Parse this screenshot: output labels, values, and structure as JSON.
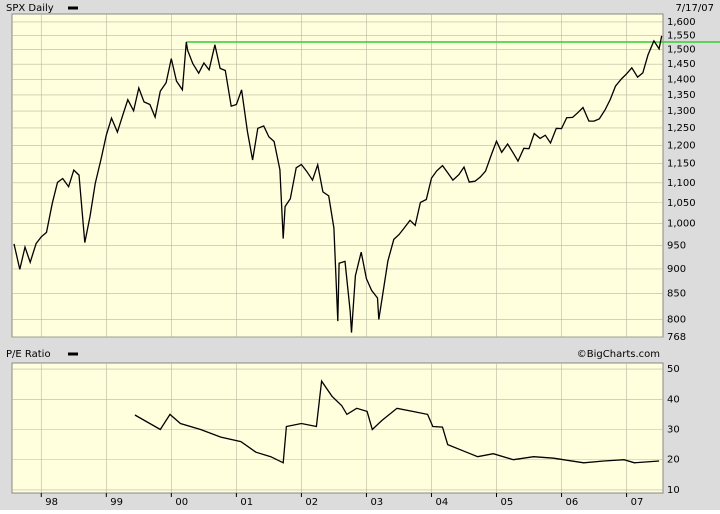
{
  "chart_data": [
    {
      "type": "line",
      "date_label": "7/17/07",
      "log_scale": true,
      "grid": true,
      "xlim": [
        1997.55,
        2007.56
      ],
      "ylim": [
        768,
        1630
      ],
      "yticks": [
        768,
        800,
        850,
        900,
        950,
        {
          "value": 1000,
          "label": "1,000"
        },
        {
          "value": 1050,
          "label": "1,050"
        },
        {
          "value": 1100,
          "label": "1,100"
        },
        {
          "value": 1150,
          "label": "1,150"
        },
        {
          "value": 1200,
          "label": "1,200"
        },
        {
          "value": 1250,
          "label": "1,250"
        },
        {
          "value": 1300,
          "label": "1,300"
        },
        {
          "value": 1350,
          "label": "1,350"
        },
        {
          "value": 1400,
          "label": "1,400"
        },
        {
          "value": 1450,
          "label": "1,450"
        },
        {
          "value": 1500,
          "label": "1,500"
        },
        {
          "value": 1550,
          "label": "1,550"
        },
        {
          "value": 1600,
          "label": "1,600"
        }
      ],
      "hline": {
        "value": 1527,
        "x": 2000.23,
        "color": "#33cc33"
      },
      "x": [
        1997.58,
        1997.67,
        1997.75,
        1997.83,
        1997.92,
        1998.0,
        1998.08,
        1998.17,
        1998.25,
        1998.33,
        1998.42,
        1998.5,
        1998.58,
        1998.67,
        1998.75,
        1998.83,
        1998.92,
        1999.0,
        1999.08,
        1999.17,
        1999.25,
        1999.33,
        1999.42,
        1999.5,
        1999.58,
        1999.67,
        1999.75,
        1999.83,
        1999.92,
        2000.0,
        2000.08,
        2000.17,
        2000.23,
        2000.25,
        2000.33,
        2000.42,
        2000.5,
        2000.58,
        2000.67,
        2000.75,
        2000.83,
        2000.92,
        2001.0,
        2001.08,
        2001.17,
        2001.25,
        2001.33,
        2001.42,
        2001.5,
        2001.58,
        2001.67,
        2001.72,
        2001.75,
        2001.83,
        2001.92,
        2002.0,
        2002.08,
        2002.17,
        2002.25,
        2002.33,
        2002.42,
        2002.5,
        2002.56,
        2002.58,
        2002.67,
        2002.75,
        2002.77,
        2002.83,
        2002.92,
        2003.0,
        2003.08,
        2003.17,
        2003.19,
        2003.25,
        2003.33,
        2003.42,
        2003.5,
        2003.58,
        2003.67,
        2003.75,
        2003.83,
        2003.92,
        2004.0,
        2004.08,
        2004.17,
        2004.25,
        2004.33,
        2004.42,
        2004.5,
        2004.58,
        2004.67,
        2004.75,
        2004.83,
        2004.92,
        2005.0,
        2005.08,
        2005.17,
        2005.25,
        2005.33,
        2005.42,
        2005.5,
        2005.58,
        2005.67,
        2005.75,
        2005.83,
        2005.92,
        2006.0,
        2006.08,
        2006.17,
        2006.25,
        2006.33,
        2006.42,
        2006.5,
        2006.58,
        2006.67,
        2006.75,
        2006.83,
        2006.92,
        2007.0,
        2007.08,
        2007.17,
        2007.25,
        2007.33,
        2007.42,
        2007.5,
        2007.54
      ],
      "series": [
        {
          "name": "SPX Daily",
          "color": "#000000",
          "values": [
            954,
            899,
            947,
            914,
            955,
            970,
            980,
            1049,
            1101,
            1111,
            1090,
            1133,
            1120,
            957,
            1017,
            1098,
            1163,
            1229,
            1279,
            1238,
            1286,
            1335,
            1301,
            1372,
            1328,
            1320,
            1282,
            1362,
            1389,
            1469,
            1394,
            1366,
            1527,
            1498,
            1452,
            1420,
            1454,
            1431,
            1517,
            1436,
            1429,
            1315,
            1320,
            1366,
            1240,
            1160,
            1249,
            1256,
            1224,
            1211,
            1134,
            966,
            1041,
            1060,
            1139,
            1148,
            1130,
            1107,
            1147,
            1077,
            1067,
            990,
            797,
            912,
            916,
            815,
            776,
            886,
            936,
            880,
            856,
            841,
            800,
            848,
            917,
            964,
            975,
            990,
            1008,
            996,
            1051,
            1058,
            1112,
            1131,
            1145,
            1126,
            1107,
            1121,
            1141,
            1102,
            1104,
            1115,
            1130,
            1174,
            1212,
            1181,
            1204,
            1181,
            1157,
            1192,
            1191,
            1234,
            1220,
            1229,
            1207,
            1249,
            1248,
            1280,
            1281,
            1295,
            1311,
            1270,
            1270,
            1277,
            1304,
            1336,
            1378,
            1401,
            1418,
            1438,
            1407,
            1421,
            1482,
            1531,
            1503,
            1549
          ]
        }
      ]
    },
    {
      "type": "line",
      "source": "©BigCharts.com",
      "grid": true,
      "xlim": [
        1997.55,
        2007.56
      ],
      "ylim": [
        9,
        52
      ],
      "yticks": [
        10,
        20,
        30,
        40,
        50
      ],
      "xticks": [
        {
          "value": 1998,
          "label": "98"
        },
        {
          "value": 1999,
          "label": "99"
        },
        {
          "value": 2000,
          "label": "00"
        },
        {
          "value": 2001,
          "label": "01"
        },
        {
          "value": 2002,
          "label": "02"
        },
        {
          "value": 2003,
          "label": "03"
        },
        {
          "value": 2004,
          "label": "04"
        },
        {
          "value": 2005,
          "label": "05"
        },
        {
          "value": 2006,
          "label": "06"
        },
        {
          "value": 2007,
          "label": "07"
        }
      ],
      "x": [
        1999.44,
        1999.83,
        1999.98,
        2000.14,
        2000.45,
        2000.76,
        2001.07,
        2001.3,
        2001.53,
        2001.72,
        2001.77,
        2002.0,
        2002.23,
        2002.31,
        2002.47,
        2002.62,
        2002.7,
        2002.85,
        2003.01,
        2003.09,
        2003.24,
        2003.47,
        2003.71,
        2003.94,
        2004.02,
        2004.17,
        2004.25,
        2004.48,
        2004.71,
        2004.95,
        2005.26,
        2005.57,
        2005.88,
        2006.19,
        2006.34,
        2006.65,
        2006.96,
        2007.12,
        2007.5
      ],
      "series": [
        {
          "name": "P/E Ratio",
          "color": "#000000",
          "values": [
            34.8,
            30,
            35,
            32,
            30,
            27.5,
            26,
            22.5,
            21,
            19,
            31,
            32,
            31,
            46,
            41,
            37.9,
            35,
            37,
            36,
            30,
            33,
            37,
            36,
            35,
            31,
            30.8,
            25,
            23,
            21,
            22,
            20,
            21,
            20.5,
            19.5,
            19,
            19.6,
            20,
            19,
            19.6
          ]
        }
      ]
    }
  ]
}
